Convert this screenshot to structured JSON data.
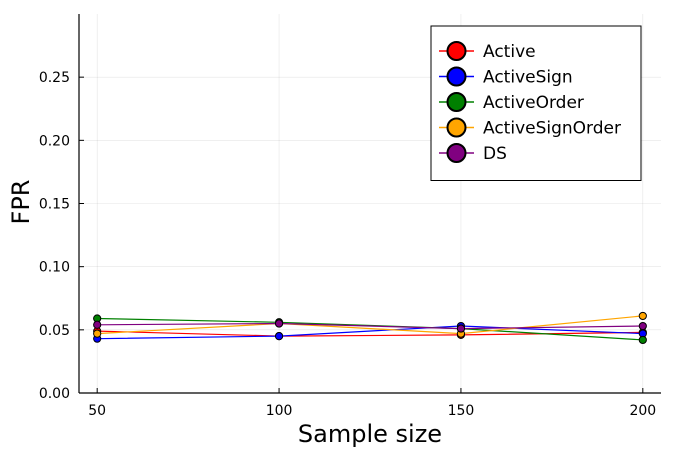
{
  "chart_data": {
    "type": "line",
    "xlabel": "Sample size",
    "ylabel": "FPR",
    "x": [
      50,
      100,
      150,
      200
    ],
    "xlim": [
      45,
      205
    ],
    "ylim": [
      0,
      0.3
    ],
    "xticks": [
      50,
      100,
      150,
      200
    ],
    "xtick_labels": [
      "50",
      "100",
      "150",
      "200"
    ],
    "yticks": [
      0,
      0.05,
      0.1,
      0.15,
      0.2,
      0.25
    ],
    "ytick_labels": [
      "0.00",
      "0.05",
      "0.10",
      "0.15",
      "0.20",
      "0.25"
    ],
    "grid": true,
    "legend_position": "top-right",
    "series": [
      {
        "name": "Active",
        "color": "#ff0000",
        "values": [
          0.049,
          0.045,
          0.046,
          0.048
        ]
      },
      {
        "name": "ActiveSign",
        "color": "#0000ff",
        "values": [
          0.043,
          0.045,
          0.053,
          0.047
        ]
      },
      {
        "name": "ActiveOrder",
        "color": "#008000",
        "values": [
          0.059,
          0.056,
          0.051,
          0.042
        ]
      },
      {
        "name": "ActiveSignOrder",
        "color": "#ffa500",
        "values": [
          0.047,
          0.055,
          0.047,
          0.061
        ]
      },
      {
        "name": "DS",
        "color": "#800080",
        "values": [
          0.054,
          0.055,
          0.051,
          0.053
        ]
      }
    ]
  }
}
